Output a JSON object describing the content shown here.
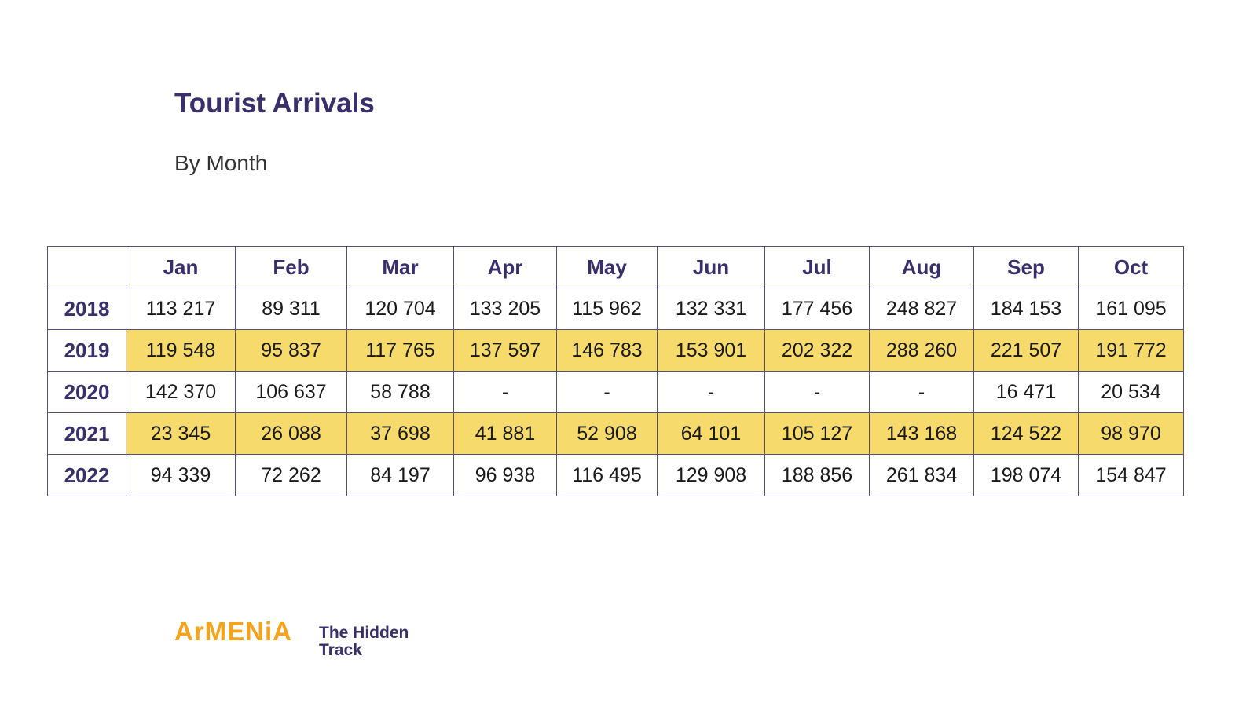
{
  "title": "Tourist Arrivals",
  "subtitle": "By Month",
  "table": {
    "columns": [
      "",
      "Jan",
      "Feb",
      "Mar",
      "Apr",
      "May",
      "Jun",
      "Jul",
      "Aug",
      "Sep",
      "Oct"
    ],
    "rows": [
      {
        "year": "2018",
        "highlight": false,
        "values": [
          "113 217",
          "89 311",
          "120 704",
          "133 205",
          "115 962",
          "132 331",
          "177 456",
          "248 827",
          "184 153",
          "161 095"
        ]
      },
      {
        "year": "2019",
        "highlight": true,
        "values": [
          "119 548",
          "95 837",
          "117 765",
          "137 597",
          "146 783",
          "153 901",
          "202 322",
          "288 260",
          "221 507",
          "191 772"
        ]
      },
      {
        "year": "2020",
        "highlight": false,
        "values": [
          "142 370",
          "106 637",
          "58 788",
          "-",
          "-",
          "-",
          "-",
          "-",
          "16 471",
          "20 534"
        ]
      },
      {
        "year": "2021",
        "highlight": true,
        "values": [
          "23 345",
          "26 088",
          "37 698",
          "41 881",
          "52 908",
          "64 101",
          "105 127",
          "143 168",
          "124 522",
          "98 970"
        ]
      },
      {
        "year": "2022",
        "highlight": false,
        "values": [
          "94 339",
          "72 262",
          "84 197",
          "96 938",
          "116 495",
          "129 908",
          "188 856",
          "261 834",
          "198 074",
          "154 847"
        ]
      }
    ]
  },
  "logo": {
    "brand": "ArMENiA",
    "tagline": "The Hidden Track"
  },
  "colors": {
    "heading": "#3a2f6b",
    "highlight": "#f6db6c",
    "brand": "#f5a31a"
  }
}
